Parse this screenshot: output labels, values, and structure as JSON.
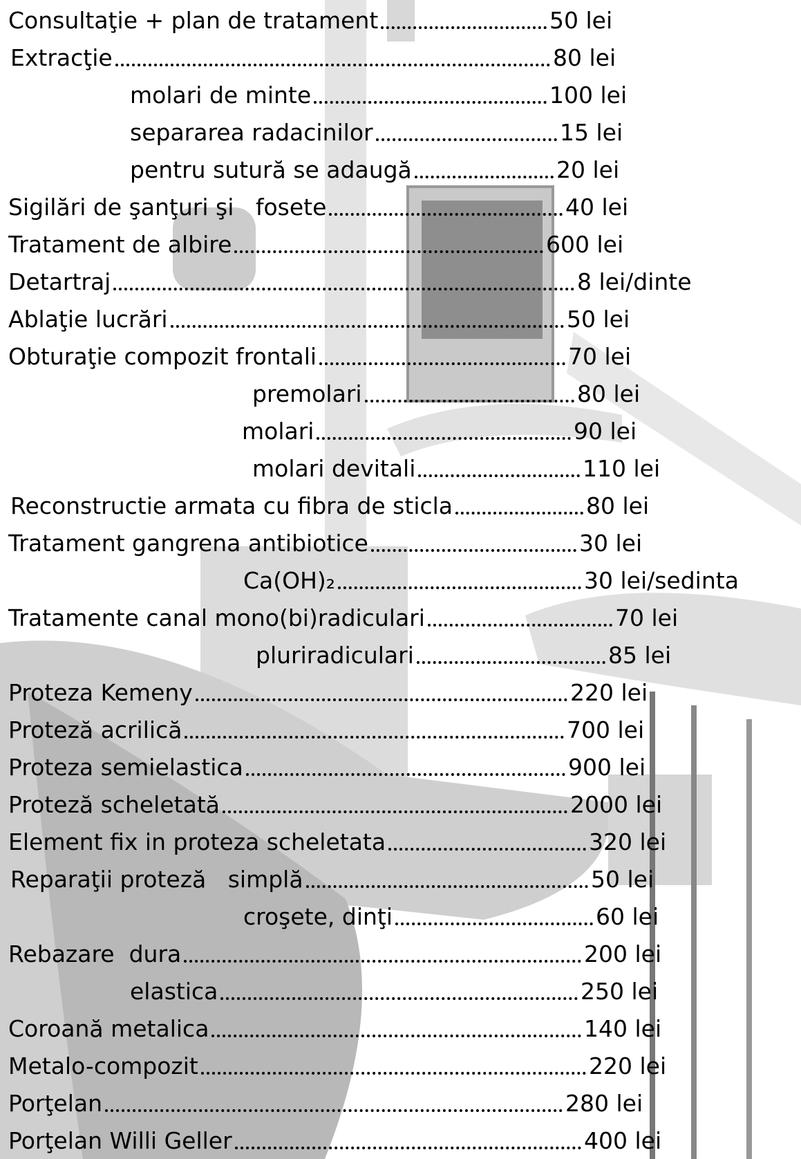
{
  "items": [
    {
      "label": "Consultaţie + plan de tratament",
      "price": "50 lei"
    },
    {
      "label": "Extracţie",
      "price": "80 lei"
    },
    {
      "label": "molari de minte",
      "price": "100 lei"
    },
    {
      "label": "separarea radacinilor",
      "price": "15 lei"
    },
    {
      "label": "pentru sutură se adaugă",
      "price": "20 lei"
    },
    {
      "label": "Sigilări de şanţuri şi   fosete",
      "price": "40 lei"
    },
    {
      "label": "Tratament de albire",
      "price": "600 lei"
    },
    {
      "label": "Detartraj",
      "price": "8 lei/dinte"
    },
    {
      "label": "Ablaţie lucrări",
      "price": "50 lei"
    },
    {
      "label": "Obturaţie compozit frontali",
      "price": "70 lei"
    },
    {
      "label": "premolari",
      "price": "80 lei"
    },
    {
      "label": "molari",
      "price": "90 lei"
    },
    {
      "label": "molari devitali",
      "price": "110 lei"
    },
    {
      "label": "Reconstructie armata cu fibra de sticla",
      "price": "80 lei"
    },
    {
      "label": "Tratament gangrena antibiotice",
      "price": "30 lei"
    },
    {
      "label": "Ca(OH)₂",
      "price": "30 lei/sedinta"
    },
    {
      "label": "Tratamente canal mono(bi)radiculari",
      "price": "70 lei"
    },
    {
      "label": "pluriradiculari",
      "price": "85 lei"
    },
    {
      "label": "Proteza Kemeny",
      "price": "220 lei"
    },
    {
      "label": "Proteză acrilică",
      "price": "700 lei"
    },
    {
      "label": "Proteza semielastica",
      "price": "900 lei"
    },
    {
      "label": "Proteză scheletată",
      "price": "2000 lei"
    },
    {
      "label": "Element fix in proteza scheletata",
      "price": "320 lei"
    },
    {
      "label": "Reparaţii proteză   simplă",
      "price": "50 lei"
    },
    {
      "label": "croşete, dinţi",
      "price": "60 lei"
    },
    {
      "label": "Rebazare  dura",
      "price": "200 lei"
    },
    {
      "label": "elastica",
      "price": "250 lei"
    },
    {
      "label": "Coroană metalica",
      "price": "140 lei"
    },
    {
      "label": "Metalo-compozit",
      "price": "220 lei"
    },
    {
      "label": "Porţelan",
      "price": "280 lei"
    },
    {
      "label": "Porţelan Willi Geller",
      "price": "400 lei"
    }
  ]
}
